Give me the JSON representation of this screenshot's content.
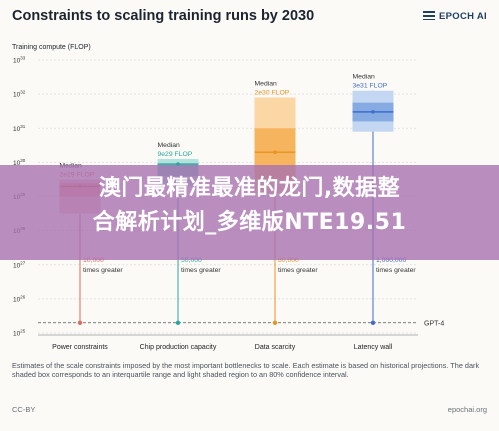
{
  "header": {
    "title": "Constraints to scaling training runs by 2030",
    "brand": "EPOCH AI"
  },
  "chart_data": {
    "type": "bar",
    "ylabel": "Training compute (FLOP)",
    "yscale": "log",
    "ylim_exp": [
      25,
      33
    ],
    "ytick_exps": [
      25,
      26,
      27,
      28,
      29,
      30,
      31,
      32,
      33
    ],
    "categories": [
      "Power constraints",
      "Chip production capacity",
      "Data scarcity",
      "Latency wall"
    ],
    "medians": [
      {
        "label": "Median",
        "value": "2e29 FLOP",
        "exp": 29.3
      },
      {
        "label": "Median",
        "value": "9e29 FLOP",
        "exp": 29.95
      },
      {
        "label": "Median",
        "value": "2e30 FLOP",
        "exp": 30.3
      },
      {
        "label": "Median",
        "value": "3e31 FLOP",
        "exp": 31.48
      }
    ],
    "ranges": [
      {
        "light": [
          28.5,
          29.5
        ],
        "dark": [
          29.0,
          29.4
        ]
      },
      {
        "light": [
          29.3,
          30.1
        ],
        "dark": [
          29.6,
          29.95
        ]
      },
      {
        "light": [
          29.1,
          31.9
        ],
        "dark": [
          29.5,
          31.0
        ]
      },
      {
        "light": [
          30.9,
          32.1
        ],
        "dark": [
          31.2,
          31.75
        ]
      }
    ],
    "multipliers": [
      {
        "value": "10,000",
        "unit": "times greater"
      },
      {
        "value": "50,000",
        "unit": "times greater"
      },
      {
        "value": "80,000",
        "unit": "times greater"
      },
      {
        "value": "1,000,000",
        "unit": "times greater"
      }
    ],
    "reference": {
      "label": "GPT-4",
      "exp": 25.3
    },
    "colors": {
      "power": [
        "#f7c9c5",
        "#ef9f98",
        "#e26a5e"
      ],
      "chip": [
        "#b2e2de",
        "#75c8c1",
        "#27a89e"
      ],
      "data": [
        "#fbd7a6",
        "#f6b45f",
        "#e89322"
      ],
      "latency": [
        "#c3d7f2",
        "#86abe3",
        "#3f6ec9"
      ],
      "grid": "#dcdcdc",
      "stem": "#bcbcbc"
    }
  },
  "footnote": "Estimates of the scale constraints imposed by the most important bottlenecks to scale. Each estimate is based on historical projections. The dark shaded box corresponds to an interquartile range and light shaded region to an 80% confidence interval.",
  "footer": {
    "license": "CC-BY",
    "site": "epochai.org"
  },
  "overlay": {
    "line1": "澳门最精准最准的龙门,数据整",
    "line2": "合解析计划_多维版NTE19.51"
  }
}
